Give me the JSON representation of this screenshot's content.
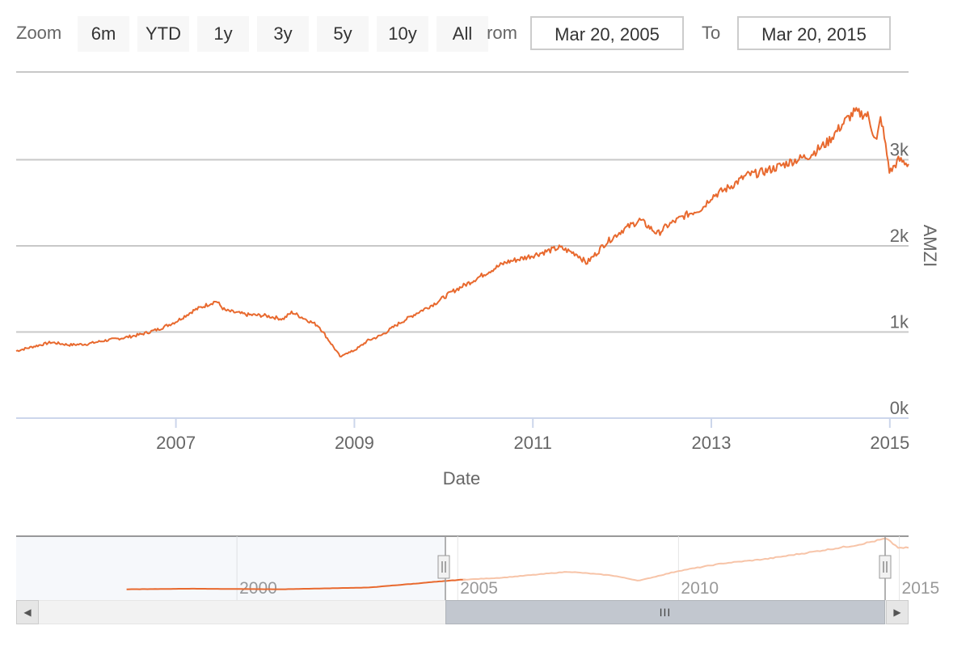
{
  "range_selector": {
    "zoom_label": "Zoom",
    "buttons": [
      "6m",
      "YTD",
      "1y",
      "3y",
      "5y",
      "10y",
      "All"
    ],
    "from_label": "From",
    "from_value": "Mar 20, 2005",
    "to_label": "To",
    "to_value": "Mar 20, 2015"
  },
  "colors": {
    "series": "#e8692e",
    "navigator_series": "#f7c4a8",
    "grid": "#c8c8c8",
    "axis": "#ccd6eb",
    "scrollbar_thumb": "#c2c7cf"
  },
  "scrollbar": {
    "grip": "III",
    "left_arrow": "◀",
    "right_arrow": "▶"
  },
  "chart_data": {
    "type": "line",
    "xlabel": "Date",
    "ylabel": "AMZI",
    "x_range": [
      2005.21,
      2015.21
    ],
    "ylim": [
      0,
      3000
    ],
    "grid": true,
    "x_ticks": [
      {
        "value": 2007,
        "label": "2007"
      },
      {
        "value": 2009,
        "label": "2009"
      },
      {
        "value": 2011,
        "label": "2011"
      },
      {
        "value": 2013,
        "label": "2013"
      },
      {
        "value": 2015,
        "label": "2015"
      }
    ],
    "y_ticks": [
      {
        "value": 0,
        "label": "0k"
      },
      {
        "value": 1000,
        "label": "1k"
      },
      {
        "value": 2000,
        "label": "2k"
      },
      {
        "value": 3000,
        "label": "3k"
      }
    ],
    "series": [
      {
        "x": [
          2005.21,
          2005.4,
          2005.6,
          2005.8,
          2006.0,
          2006.2,
          2006.4,
          2006.6,
          2006.8,
          2007.0,
          2007.2,
          2007.45,
          2007.55,
          2007.65,
          2007.8,
          2008.0,
          2008.2,
          2008.3,
          2008.45,
          2008.6,
          2008.75,
          2008.85,
          2008.9,
          2008.95,
          2009.05,
          2009.15,
          2009.3,
          2009.5,
          2009.7,
          2009.9,
          2010.1,
          2010.3,
          2010.5,
          2010.7,
          2010.9,
          2011.1,
          2011.3,
          2011.5,
          2011.6,
          2011.7,
          2011.8,
          2012.0,
          2012.2,
          2012.4,
          2012.5,
          2012.7,
          2012.9,
          2013.0,
          2013.2,
          2013.4,
          2013.55,
          2013.7,
          2013.9,
          2014.1,
          2014.3,
          2014.5,
          2014.6,
          2014.75,
          2014.85,
          2014.9,
          2015.0,
          2015.1,
          2015.21
        ],
        "values": [
          780,
          830,
          880,
          850,
          860,
          900,
          930,
          970,
          1030,
          1120,
          1250,
          1360,
          1250,
          1230,
          1200,
          1190,
          1150,
          1230,
          1150,
          1070,
          850,
          700,
          760,
          760,
          820,
          900,
          960,
          1100,
          1220,
          1330,
          1470,
          1580,
          1700,
          1810,
          1860,
          1920,
          1980,
          1900,
          1800,
          1900,
          2020,
          2180,
          2300,
          2140,
          2230,
          2350,
          2440,
          2570,
          2680,
          2820,
          2850,
          2900,
          2980,
          3050,
          3200,
          3450,
          3550,
          3520,
          3200,
          3500,
          2850,
          3000,
          2950
        ]
      }
    ]
  },
  "navigator": {
    "x_range": [
      1995.0,
      2015.21
    ],
    "labels": [
      {
        "value": 2000,
        "label": "2000"
      },
      {
        "value": 2005,
        "label": "2005"
      },
      {
        "value": 2010,
        "label": "2010"
      },
      {
        "value": 2015,
        "label": "2015"
      }
    ],
    "selected_range": [
      2005.21,
      2015.21
    ],
    "series": {
      "x": [
        1997.5,
        1999.0,
        2001.0,
        2003.0,
        2005.0,
        2006.0,
        2007.5,
        2008.5,
        2009.1,
        2010.0,
        2011.0,
        2012.0,
        2013.0,
        2014.0,
        2014.7,
        2015.0,
        2015.21
      ],
      "values": [
        180,
        220,
        180,
        300,
        800,
        950,
        1350,
        1100,
        750,
        1400,
        1900,
        2200,
        2650,
        3100,
        3550,
        2900,
        2950
      ]
    },
    "ylim": [
      0,
      3600
    ]
  }
}
